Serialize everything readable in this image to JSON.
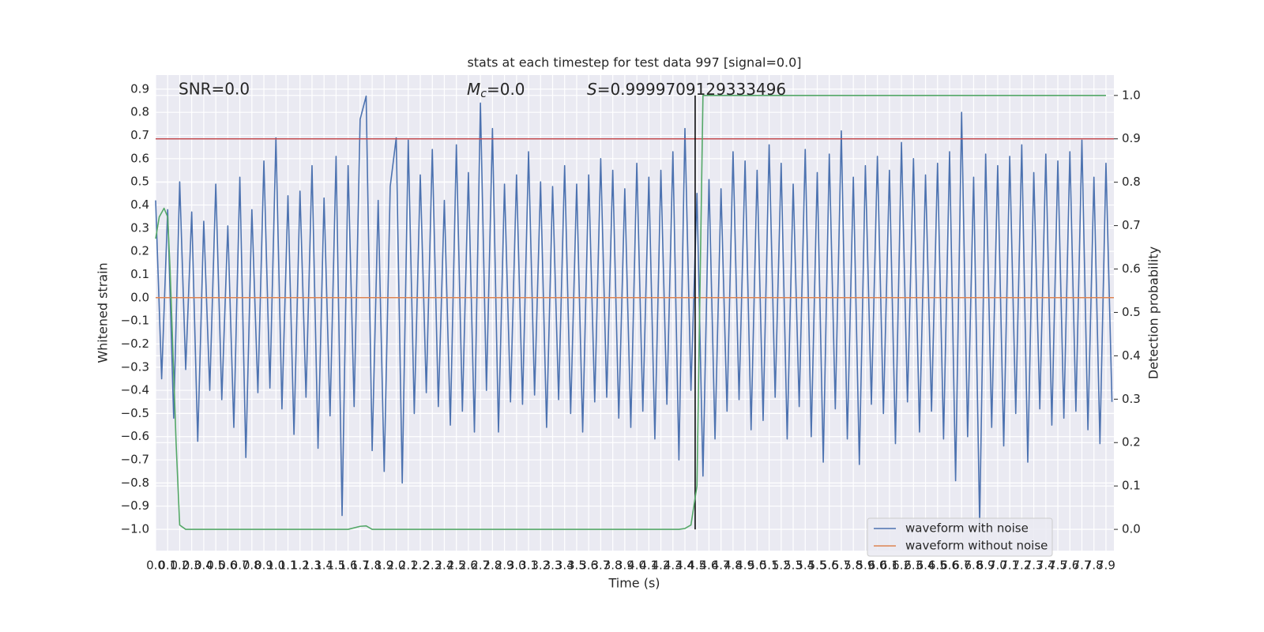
{
  "chart_data": {
    "type": "line",
    "title": "stats at each timestep for test data 997 [signal=0.0]",
    "x_label": "Time (s)",
    "y_label": "Whitened strain",
    "y2_label": "Detection probability",
    "annotations": {
      "snr": "SNR=0.0",
      "mc_symbol": "M",
      "mc_subscript": "c",
      "mc_value": "=0.0",
      "s_symbol": "S",
      "s_value": "=0.9999709129333496"
    },
    "xlim": [
      0,
      7.966
    ],
    "ylim": [
      -1.092,
      0.961
    ],
    "y2lim": [
      -0.049,
      1.047
    ],
    "grid": true,
    "legend": "lower right",
    "series": [
      {
        "name": "waveform with noise",
        "color": "#4c72b0",
        "x": [
          0,
          0.05,
          0.1,
          0.15,
          0.2,
          0.25,
          0.3,
          0.35,
          0.4,
          0.45,
          0.5,
          0.55,
          0.6,
          0.65,
          0.7,
          0.75,
          0.8,
          0.85,
          0.9,
          0.95,
          1.0,
          1.05,
          1.1,
          1.15,
          1.2,
          1.25,
          1.3,
          1.35,
          1.4,
          1.45,
          1.5,
          1.55,
          1.6,
          1.65,
          1.7,
          1.75,
          1.8,
          1.85,
          1.9,
          1.95,
          2.0,
          2.05,
          2.1,
          2.15,
          2.2,
          2.25,
          2.3,
          2.35,
          2.4,
          2.45,
          2.5,
          2.55,
          2.6,
          2.65,
          2.7,
          2.75,
          2.8,
          2.85,
          2.9,
          2.95,
          3.0,
          3.05,
          3.1,
          3.15,
          3.2,
          3.25,
          3.3,
          3.35,
          3.4,
          3.45,
          3.5,
          3.55,
          3.6,
          3.65,
          3.7,
          3.75,
          3.8,
          3.85,
          3.9,
          3.95,
          4.0,
          4.05,
          4.1,
          4.15,
          4.2,
          4.25,
          4.3,
          4.35,
          4.4,
          4.45,
          4.5,
          4.55,
          4.6,
          4.65,
          4.7,
          4.75,
          4.8,
          4.85,
          4.9,
          4.95,
          5.0,
          5.05,
          5.1,
          5.15,
          5.2,
          5.25,
          5.3,
          5.35,
          5.4,
          5.45,
          5.5,
          5.55,
          5.6,
          5.65,
          5.7,
          5.75,
          5.8,
          5.85,
          5.9,
          5.95,
          6.0,
          6.05,
          6.1,
          6.15,
          6.2,
          6.25,
          6.3,
          6.35,
          6.4,
          6.45,
          6.5,
          6.55,
          6.6,
          6.65,
          6.7,
          6.75,
          6.8,
          6.85,
          6.9,
          6.95,
          7.0,
          7.05,
          7.1,
          7.15,
          7.2,
          7.25,
          7.3,
          7.35,
          7.4,
          7.45,
          7.5,
          7.55,
          7.6,
          7.65,
          7.7,
          7.75,
          7.8,
          7.85,
          7.9,
          7.95
        ],
        "values": [
          0.42,
          -0.35,
          0.38,
          -0.52,
          0.5,
          -0.31,
          0.37,
          -0.62,
          0.33,
          -0.4,
          0.49,
          -0.44,
          0.31,
          -0.56,
          0.52,
          -0.69,
          0.38,
          -0.41,
          0.59,
          -0.39,
          0.69,
          -0.48,
          0.44,
          -0.59,
          0.46,
          -0.43,
          0.57,
          -0.65,
          0.43,
          -0.51,
          0.61,
          -0.94,
          0.57,
          -0.47,
          0.77,
          0.87,
          -0.66,
          0.42,
          -0.75,
          0.48,
          0.69,
          -0.8,
          0.68,
          -0.5,
          0.53,
          -0.41,
          0.64,
          -0.47,
          0.42,
          -0.55,
          0.66,
          -0.49,
          0.54,
          -0.58,
          0.84,
          -0.4,
          0.73,
          -0.58,
          0.49,
          -0.45,
          0.53,
          -0.46,
          0.63,
          -0.42,
          0.5,
          -0.56,
          0.48,
          -0.44,
          0.57,
          -0.5,
          0.49,
          -0.58,
          0.53,
          -0.45,
          0.6,
          -0.43,
          0.55,
          -0.52,
          0.47,
          -0.56,
          0.58,
          -0.49,
          0.52,
          -0.61,
          0.55,
          -0.46,
          0.63,
          -0.7,
          0.73,
          -0.4,
          0.45,
          -0.77,
          0.51,
          -0.61,
          0.47,
          -0.49,
          0.63,
          -0.44,
          0.59,
          -0.57,
          0.55,
          -0.53,
          0.66,
          -0.43,
          0.58,
          -0.61,
          0.49,
          -0.47,
          0.64,
          -0.6,
          0.54,
          -0.71,
          0.62,
          -0.48,
          0.72,
          -0.61,
          0.52,
          -0.72,
          0.57,
          -0.46,
          0.61,
          -0.5,
          0.55,
          -0.63,
          0.67,
          -0.45,
          0.6,
          -0.58,
          0.53,
          -0.49,
          0.58,
          -0.61,
          0.63,
          -0.79,
          0.8,
          -0.6,
          0.52,
          -0.98,
          0.62,
          -0.56,
          0.57,
          -0.64,
          0.61,
          -0.5,
          0.66,
          -0.71,
          0.54,
          -0.48,
          0.62,
          -0.55,
          0.59,
          -0.52,
          0.63,
          -0.49,
          0.68,
          -0.57,
          0.52,
          -0.63,
          0.58,
          -0.45
        ]
      },
      {
        "name": "waveform without noise",
        "color": "#dd8452",
        "x": [
          0,
          7.966
        ],
        "values": [
          0,
          0
        ]
      }
    ],
    "probability": {
      "color": "#55a868",
      "axis": "y2",
      "x": [
        0,
        0.03,
        0.07,
        0.1,
        0.12,
        0.17,
        0.2,
        0.25,
        1.6,
        1.7,
        1.75,
        1.8,
        4.35,
        4.4,
        4.45,
        4.5,
        4.55,
        7.9
      ],
      "values": [
        0.67,
        0.72,
        0.74,
        0.72,
        0.6,
        0.2,
        0.01,
        0,
        0,
        0.007,
        0.008,
        0,
        0,
        0.002,
        0.01,
        0.1,
        1.0,
        1.0
      ]
    },
    "threshold": {
      "value": 0.9,
      "color": "#c44e52",
      "axis": "y2"
    },
    "vline": {
      "x": 4.485,
      "ymin": 0,
      "ymax": 1.0,
      "color": "#000000",
      "axis": "y2"
    },
    "yticks": [
      {
        "value": -1.0,
        "label": "−1.0"
      },
      {
        "value": -0.9,
        "label": "−0.9"
      },
      {
        "value": -0.8,
        "label": "−0.8"
      },
      {
        "value": -0.7,
        "label": "−0.7"
      },
      {
        "value": -0.6,
        "label": "−0.6"
      },
      {
        "value": -0.5,
        "label": "−0.5"
      },
      {
        "value": -0.4,
        "label": "−0.4"
      },
      {
        "value": -0.3,
        "label": "−0.3"
      },
      {
        "value": -0.2,
        "label": "−0.2"
      },
      {
        "value": -0.1,
        "label": "−0.1"
      },
      {
        "value": 0,
        "label": "0.0"
      },
      0.1,
      0.2,
      0.3,
      0.4,
      0.5,
      0.6,
      0.7,
      0.8,
      0.9
    ],
    "y2ticks": [
      {
        "value": 0,
        "label": "0.0"
      },
      0.1,
      0.2,
      0.3,
      0.4,
      0.5,
      0.6,
      0.7,
      0.8,
      0.9,
      {
        "value": 1,
        "label": "1.0"
      }
    ],
    "xticks": [
      {
        "value": 0,
        "label": "0.0"
      },
      0.1,
      0.2,
      0.3,
      0.4,
      0.5,
      0.6,
      0.7,
      0.8,
      0.9,
      {
        "value": 1,
        "label": "1.0"
      },
      1.1,
      1.2,
      1.3,
      1.4,
      1.5,
      1.6,
      1.7,
      1.8,
      1.9,
      {
        "value": 2,
        "label": "2.0"
      },
      2.1,
      2.2,
      2.3,
      2.4,
      2.5,
      2.6,
      2.7,
      2.8,
      2.9,
      {
        "value": 3,
        "label": "3.0"
      },
      3.1,
      3.2,
      3.3,
      3.4,
      3.5,
      3.6,
      3.7,
      3.8,
      3.9,
      {
        "value": 4,
        "label": "4.0"
      },
      4.1,
      4.2,
      4.3,
      4.4,
      4.5,
      4.6,
      4.7,
      4.8,
      4.9,
      {
        "value": 5,
        "label": "5.0"
      },
      5.1,
      5.2,
      5.3,
      5.4,
      5.5,
      5.6,
      5.7,
      5.8,
      5.9,
      {
        "value": 6,
        "label": "6.0"
      },
      6.1,
      6.2,
      6.3,
      6.4,
      6.5,
      6.6,
      6.7,
      6.8,
      6.9,
      {
        "value": 7,
        "label": "7.0"
      },
      7.1,
      7.2,
      7.3,
      7.4,
      7.5,
      7.6,
      7.7,
      7.8,
      7.9
    ]
  }
}
